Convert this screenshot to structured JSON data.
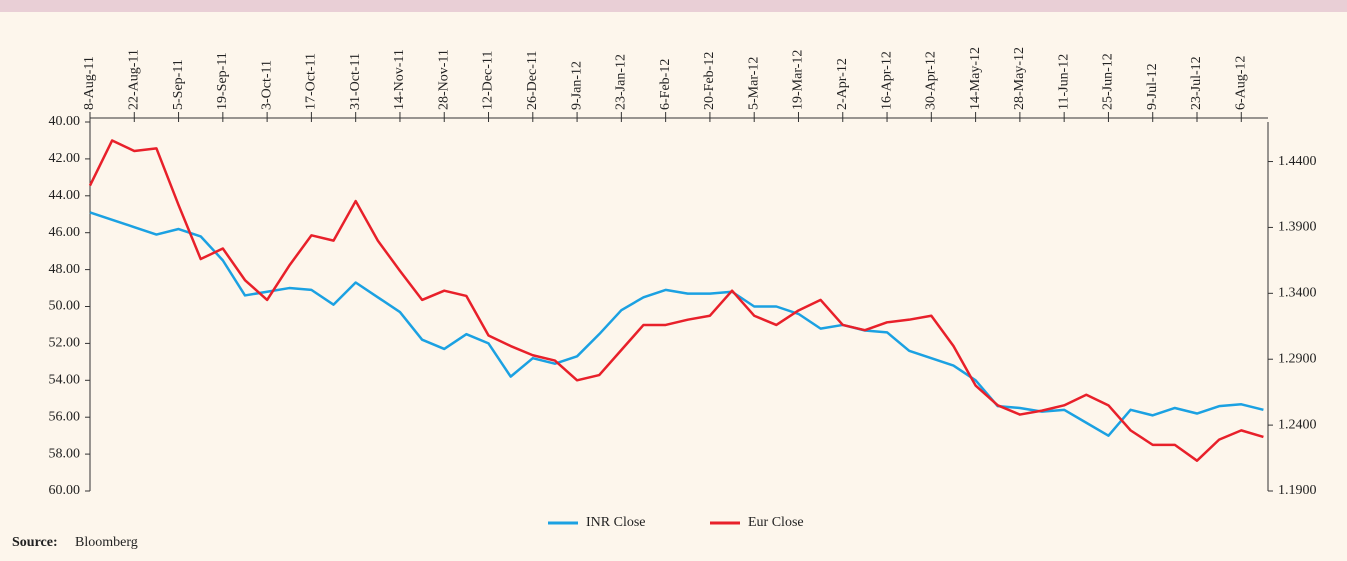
{
  "chart_data": {
    "type": "line",
    "x": [
      "8-Aug-11",
      "15-Aug-11",
      "22-Aug-11",
      "29-Aug-11",
      "5-Sep-11",
      "12-Sep-11",
      "19-Sep-11",
      "26-Sep-11",
      "3-Oct-11",
      "10-Oct-11",
      "17-Oct-11",
      "24-Oct-11",
      "31-Oct-11",
      "7-Nov-11",
      "14-Nov-11",
      "21-Nov-11",
      "28-Nov-11",
      "5-Dec-11",
      "12-Dec-11",
      "19-Dec-11",
      "26-Dec-11",
      "2-Jan-12",
      "9-Jan-12",
      "16-Jan-12",
      "23-Jan-12",
      "30-Jan-12",
      "6-Feb-12",
      "13-Feb-12",
      "20-Feb-12",
      "27-Feb-12",
      "5-Mar-12",
      "12-Mar-12",
      "19-Mar-12",
      "26-Mar-12",
      "2-Apr-12",
      "9-Apr-12",
      "16-Apr-12",
      "23-Apr-12",
      "30-Apr-12",
      "7-May-12",
      "14-May-12",
      "21-May-12",
      "28-May-12",
      "4-Jun-12",
      "11-Jun-12",
      "18-Jun-12",
      "25-Jun-12",
      "2-Jul-12",
      "9-Jul-12",
      "16-Jul-12",
      "23-Jul-12",
      "30-Jul-12",
      "6-Aug-12",
      "13-Aug-12"
    ],
    "xticks": [
      "8-Aug-11",
      "22-Aug-11",
      "5-Sep-11",
      "19-Sep-11",
      "3-Oct-11",
      "17-Oct-11",
      "31-Oct-11",
      "14-Nov-11",
      "28-Nov-11",
      "12-Dec-11",
      "26-Dec-11",
      "9-Jan-12",
      "23-Jan-12",
      "6-Feb-12",
      "20-Feb-12",
      "5-Mar-12",
      "19-Mar-12",
      "2-Apr-12",
      "16-Apr-12",
      "30-Apr-12",
      "14-May-12",
      "28-May-12",
      "11-Jun-12",
      "25-Jun-12",
      "9-Jul-12",
      "23-Jul-12",
      "6-Aug-12"
    ],
    "ylim": [
      60,
      40
    ],
    "yticks": [
      {
        "value": 40,
        "label": "40.00"
      },
      {
        "value": 42,
        "label": "42.00"
      },
      {
        "value": 44,
        "label": "44.00"
      },
      {
        "value": 46,
        "label": "46.00"
      },
      {
        "value": 48,
        "label": "48.00"
      },
      {
        "value": 50,
        "label": "50.00"
      },
      {
        "value": 52,
        "label": "52.00"
      },
      {
        "value": 54,
        "label": "54.00"
      },
      {
        "value": 56,
        "label": "56.00"
      },
      {
        "value": 58,
        "label": "58.00"
      },
      {
        "value": 60,
        "label": "60.00"
      }
    ],
    "y2lim": [
      1.19,
      1.47
    ],
    "y2ticks": [
      {
        "value": 1.44,
        "label": "1.4400"
      },
      {
        "value": 1.39,
        "label": "1.3900"
      },
      {
        "value": 1.34,
        "label": "1.3400"
      },
      {
        "value": 1.29,
        "label": "1.2900"
      },
      {
        "value": 1.24,
        "label": "1.2400"
      },
      {
        "value": 1.19,
        "label": "1.1900"
      }
    ],
    "series": [
      {
        "name": "INR Close",
        "color": "#1ba1e2",
        "values": [
          44.9,
          45.3,
          45.7,
          46.1,
          45.8,
          46.2,
          47.5,
          49.4,
          49.2,
          49.0,
          49.1,
          49.9,
          48.7,
          49.5,
          50.3,
          51.8,
          52.3,
          51.5,
          52.0,
          53.8,
          52.8,
          53.1,
          52.7,
          51.5,
          50.2,
          49.5,
          49.1,
          49.3,
          49.3,
          49.2,
          50.0,
          50.0,
          50.4,
          51.2,
          51.0,
          51.3,
          51.4,
          52.4,
          52.8,
          53.2,
          54.0,
          55.4,
          55.5,
          55.7,
          55.6,
          56.3,
          57.0,
          55.6,
          55.9,
          55.5,
          55.8,
          55.4,
          55.3,
          55.6
        ]
      },
      {
        "name": "Eur Close",
        "color": "#e8202a",
        "axis": "y2",
        "values": [
          1.4218,
          1.456,
          1.448,
          1.45,
          1.407,
          1.366,
          1.374,
          1.35,
          1.335,
          1.361,
          1.384,
          1.38,
          1.41,
          1.38,
          1.357,
          1.335,
          1.342,
          1.338,
          1.308,
          1.3,
          1.293,
          1.289,
          1.274,
          1.278,
          1.297,
          1.316,
          1.316,
          1.32,
          1.323,
          1.342,
          1.323,
          1.316,
          1.327,
          1.335,
          1.316,
          1.312,
          1.318,
          1.32,
          1.323,
          1.3,
          1.27,
          1.255,
          1.248,
          1.251,
          1.255,
          1.263,
          1.255,
          1.236,
          1.225,
          1.225,
          1.213,
          1.229,
          1.236,
          1.231
        ]
      }
    ],
    "source_label": "Source:",
    "source": "Bloomberg"
  }
}
